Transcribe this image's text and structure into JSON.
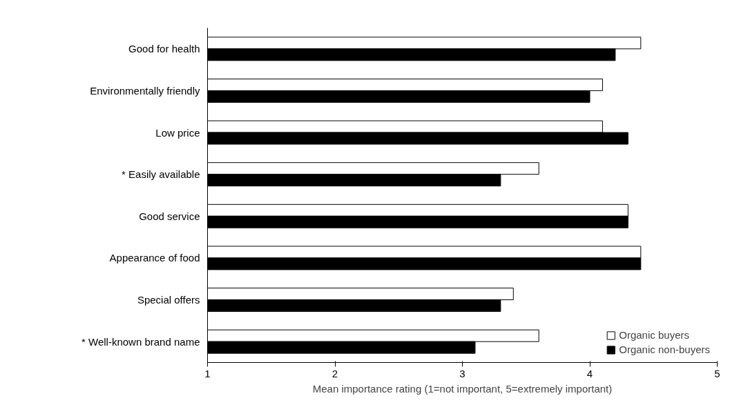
{
  "chart_data": {
    "type": "bar",
    "orientation": "horizontal",
    "xlabel": "Mean importance rating (1=not important, 5=extremely important)",
    "categories": [
      "Good for health",
      "Environmentally friendly",
      "Low price",
      "* Easily available",
      "Good service",
      "Appearance of food",
      "Special offers",
      "* Well-known brand name"
    ],
    "series": [
      {
        "name": "Organic buyers",
        "color": "#ffffff",
        "values": [
          4.4,
          4.1,
          4.1,
          3.6,
          4.3,
          4.4,
          3.4,
          3.6
        ]
      },
      {
        "name": "Organic non-buyers",
        "color": "#000000",
        "values": [
          4.2,
          4.0,
          4.3,
          3.3,
          4.3,
          4.4,
          3.3,
          3.1
        ]
      }
    ],
    "xlim": [
      1,
      5
    ],
    "xticks": [
      1,
      2,
      3,
      4,
      5
    ],
    "grid": false,
    "legend": "bottom right"
  }
}
